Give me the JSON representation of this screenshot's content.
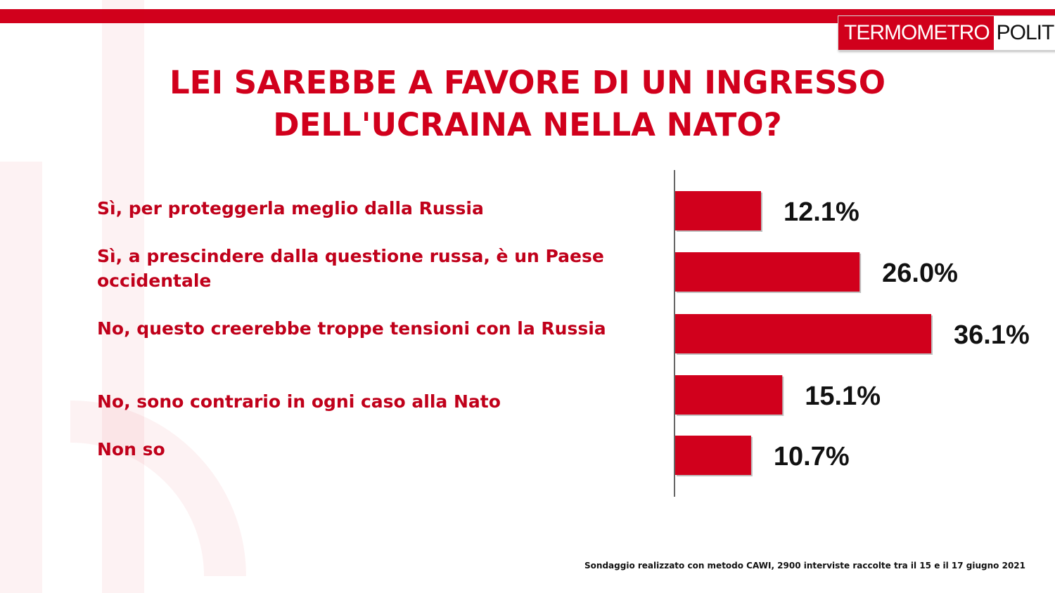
{
  "brand": {
    "logo_part1": "TERMOMETRO",
    "logo_part2": "POLITICO",
    "accent": "#d1001c"
  },
  "chart_data": {
    "type": "bar",
    "orientation": "horizontal",
    "title_lines": [
      "LEI SAREBBE A FAVORE DI UN INGRESSO",
      "DELL'UCRAINA NELLA NATO?"
    ],
    "categories": [
      "Sì, per proteggerla meglio dalla Russia",
      "Sì, a prescindere dalla questione russa, è un Paese occidentale",
      "No, questo creerebbe troppe tensioni con la Russia",
      "No, sono contrario in ogni caso alla Nato",
      "Non so"
    ],
    "values": [
      12.1,
      26.0,
      36.1,
      15.1,
      10.7
    ],
    "value_labels": [
      "12.1%",
      "26.0%",
      "36.1%",
      "15.1%",
      "10.7%"
    ],
    "unit": "%",
    "bar_color": "#d1001c",
    "grid": false
  },
  "footnote": "Sondaggio realizzato con metodo CAWI, 2900 interviste raccolte tra il 15  e il 17 giugno 2021"
}
